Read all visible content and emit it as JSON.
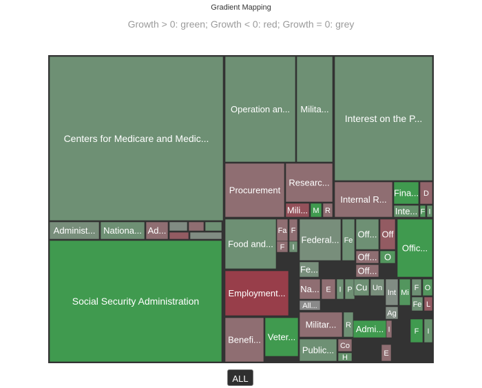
{
  "chart_data": {
    "type": "treemap",
    "title": "Gradient Mapping",
    "subtitle": "Growth > 0: green; Growth < 0: red; Growth = 0: grey",
    "color_scale": {
      "positive": "#2e9e40",
      "neutral": "#8a8a8a",
      "negative": "#9b2b3a",
      "border": "#333333"
    },
    "nodes": [
      {
        "label": "Centers for Medicare and Medic...",
        "size": 180,
        "growth": 0.3
      },
      {
        "label": "Administ...",
        "size": 6,
        "growth": 0.2
      },
      {
        "label": "Nationa...",
        "size": 5.5,
        "growth": 0.3
      },
      {
        "label": "Ad...",
        "size": 3.5,
        "growth": -0.3
      },
      {
        "label": "",
        "size": 2,
        "growth": 0.1
      },
      {
        "label": "",
        "size": 1.5,
        "growth": -0.3
      },
      {
        "label": "",
        "size": 1,
        "growth": 0.3
      },
      {
        "label": "",
        "size": 0.8,
        "growth": -0.5
      },
      {
        "label": "",
        "size": 0.6,
        "growth": 0.1
      },
      {
        "label": "Social Security Administration",
        "size": 195,
        "growth": 0.8
      },
      {
        "label": "Operation an...",
        "size": 39,
        "growth": 0.3
      },
      {
        "label": "Milita...",
        "size": 21,
        "growth": 0.3
      },
      {
        "label": "Procurement",
        "size": 23,
        "growth": -0.3
      },
      {
        "label": "Researc...",
        "size": 15,
        "growth": -0.3
      },
      {
        "label": "Mili...",
        "size": 5,
        "growth": -0.6
      },
      {
        "label": "M",
        "size": 3,
        "growth": 0.8
      },
      {
        "label": "R",
        "size": 2.5,
        "growth": -0.3
      },
      {
        "label": "Interest on the P...",
        "size": 55,
        "growth": 0.3
      },
      {
        "label": "Internal R...",
        "size": 20,
        "growth": -0.3
      },
      {
        "label": "Fina...",
        "size": 6,
        "growth": 0.8
      },
      {
        "label": "Inte...",
        "size": 3.5,
        "growth": 0.4
      },
      {
        "label": "D",
        "size": 3,
        "growth": -0.4
      },
      {
        "label": "F",
        "size": 1.5,
        "growth": 0.6
      },
      {
        "label": "I",
        "size": 1.5,
        "growth": 0.4
      },
      {
        "label": "Food and...",
        "size": 23,
        "growth": 0.3
      },
      {
        "label": "Fa",
        "size": 3.5,
        "growth": -0.3
      },
      {
        "label": "F",
        "size": 2.5,
        "growth": -0.3
      },
      {
        "label": "F",
        "size": 2,
        "growth": -0.3
      },
      {
        "label": "I",
        "size": 1.5,
        "growth": 0.3
      },
      {
        "label": "Federal...",
        "size": 18,
        "growth": 0.2
      },
      {
        "label": "Fe",
        "size": 6,
        "growth": 0.3
      },
      {
        "label": "Fe...",
        "size": 6,
        "growth": 0.2
      },
      {
        "label": "Off...",
        "size": 5,
        "growth": 0.3
      },
      {
        "label": "Off",
        "size": 4,
        "growth": -0.5
      },
      {
        "label": "Off...",
        "size": 3,
        "growth": -0.3
      },
      {
        "label": "Off...",
        "size": 2.5,
        "growth": -0.3
      },
      {
        "label": "O",
        "size": 2,
        "growth": 0.6
      },
      {
        "label": "Offic...",
        "size": 20,
        "growth": 0.8
      },
      {
        "label": "Employment...",
        "size": 30,
        "growth": -0.8
      },
      {
        "label": "Na...",
        "size": 5,
        "growth": -0.3
      },
      {
        "label": "E",
        "size": 3,
        "growth": -0.3
      },
      {
        "label": "I",
        "size": 2,
        "growth": 0.3
      },
      {
        "label": "P",
        "size": 2,
        "growth": 0.3
      },
      {
        "label": "All...",
        "size": 4,
        "growth": 0
      },
      {
        "label": "Cu",
        "size": 2.5,
        "growth": 0.3
      },
      {
        "label": "Un",
        "size": 2.5,
        "growth": 0.2
      },
      {
        "label": "Int",
        "size": 2.5,
        "growth": 0.1
      },
      {
        "label": "Mi",
        "size": 2.5,
        "growth": 0.6
      },
      {
        "label": "F",
        "size": 1.5,
        "growth": 0.3
      },
      {
        "label": "O",
        "size": 1.5,
        "growth": 0.6
      },
      {
        "label": "Fe",
        "size": 1.5,
        "growth": 0.3
      },
      {
        "label": "L",
        "size": 1,
        "growth": -0.5
      },
      {
        "label": "Ag",
        "size": 2,
        "growth": 0.1
      },
      {
        "label": "F",
        "size": 2,
        "growth": 0.8
      },
      {
        "label": "I",
        "size": 1,
        "growth": 0.4
      },
      {
        "label": "Militar...",
        "size": 10,
        "growth": -0.3
      },
      {
        "label": "R",
        "size": 2.5,
        "growth": 0.3
      },
      {
        "label": "Admi...",
        "size": 6,
        "growth": 0.8
      },
      {
        "label": "I",
        "size": 1,
        "growth": -0.3
      },
      {
        "label": "Benefi...",
        "size": 16,
        "growth": -0.3
      },
      {
        "label": "Veter...",
        "size": 15,
        "growth": 0.8
      },
      {
        "label": "Public...",
        "size": 7,
        "growth": 0.3
      },
      {
        "label": "Co",
        "size": 2.5,
        "growth": -0.3
      },
      {
        "label": "H",
        "size": 1.5,
        "growth": 0.4
      },
      {
        "label": "E",
        "size": 1.5,
        "growth": -0.3
      }
    ]
  },
  "buttons": {
    "all_label": "ALL"
  }
}
